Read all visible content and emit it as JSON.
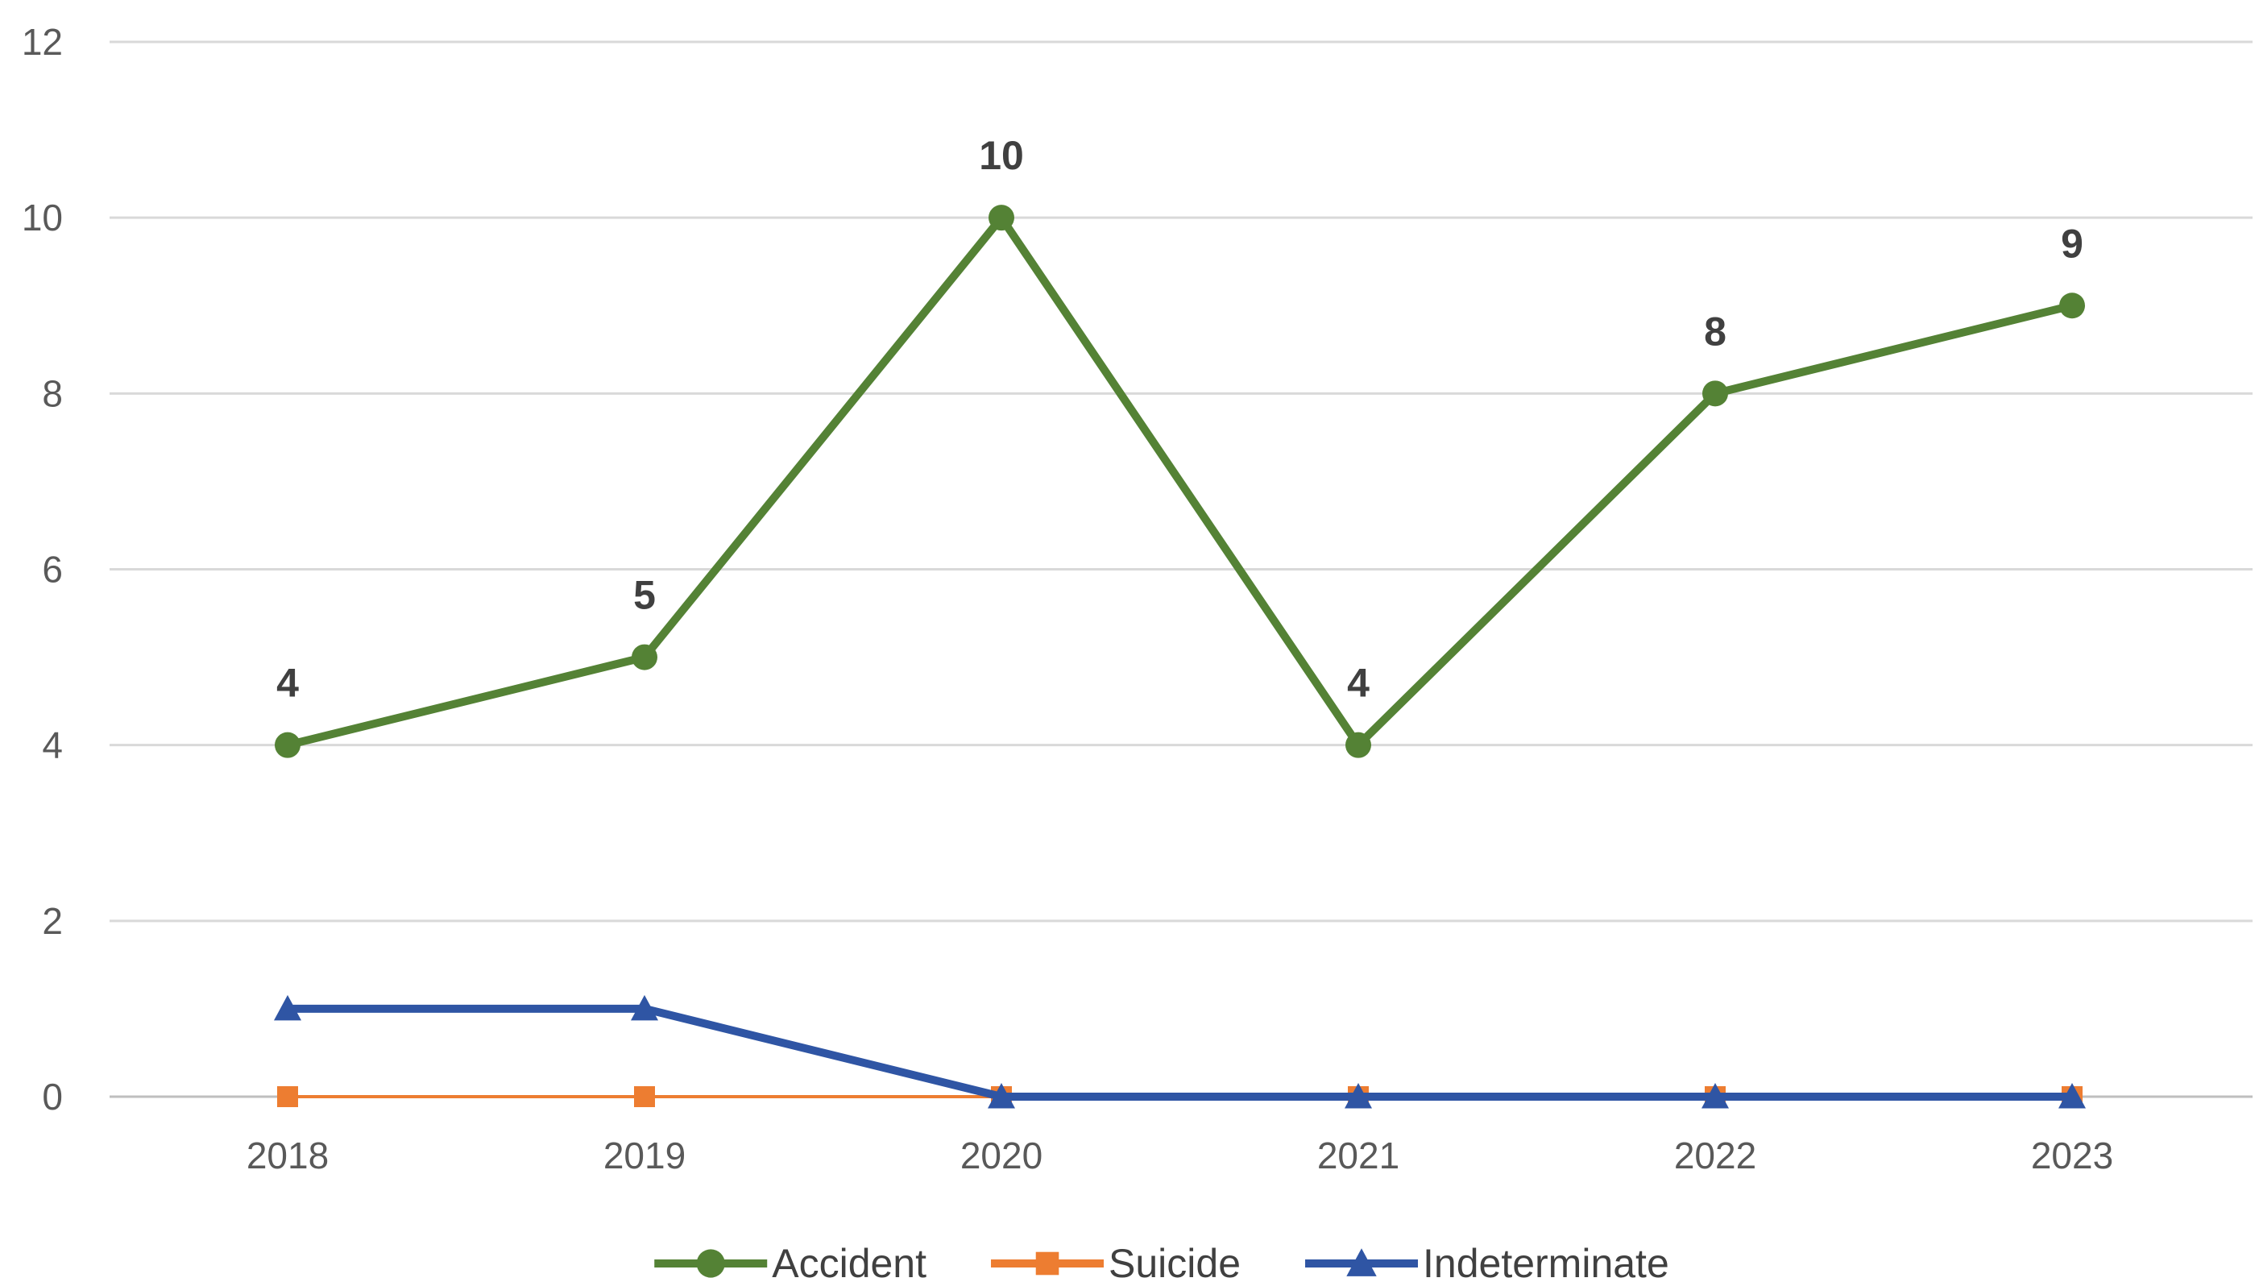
{
  "chart_data": {
    "type": "line",
    "title": "",
    "xlabel": "",
    "ylabel": "",
    "categories": [
      "2018",
      "2019",
      "2020",
      "2021",
      "2022",
      "2023"
    ],
    "ylim": [
      0,
      12
    ],
    "yticks": [
      0,
      2,
      4,
      6,
      8,
      10,
      12
    ],
    "grid": true,
    "legend_position": "bottom",
    "series": [
      {
        "name": "Accident",
        "values": [
          4,
          5,
          10,
          4,
          8,
          9
        ],
        "color": "#548235",
        "marker": "circle",
        "data_labels": [
          "4",
          "5",
          "10",
          "4",
          "8",
          "9"
        ]
      },
      {
        "name": "Suicide",
        "values": [
          0,
          0,
          0,
          0,
          0,
          0
        ],
        "color": "#ED7D31",
        "marker": "square"
      },
      {
        "name": "Indeterminate",
        "values": [
          1,
          1,
          0,
          0,
          0,
          0
        ],
        "color": "#2F55A4",
        "marker": "triangle"
      }
    ]
  }
}
